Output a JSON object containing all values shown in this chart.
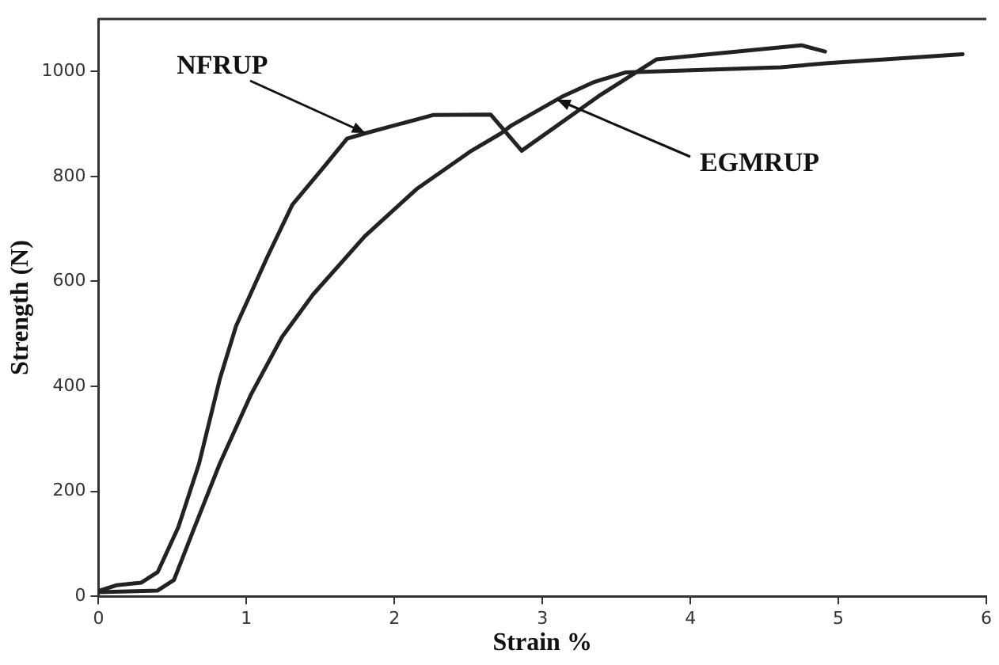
{
  "chart_data": {
    "type": "line",
    "xlabel": "Strain %",
    "ylabel": "Strength (N)",
    "xlim": [
      0,
      6
    ],
    "xticks": [
      0,
      1,
      2,
      3,
      4,
      5,
      6
    ],
    "ylim": [
      0,
      1100
    ],
    "yticks": [
      0,
      200,
      400,
      600,
      800,
      1000
    ],
    "grid": false,
    "legend": false,
    "marker": "none",
    "line_style": "solid",
    "series": [
      {
        "color": "#222222",
        "x": [
          0,
          0.12,
          0.29,
          0.4,
          0.54,
          0.68,
          0.82,
          0.93,
          1.14,
          1.31,
          1.52,
          1.68,
          1.8,
          2.26,
          2.65,
          2.86,
          3.38,
          3.77,
          4.75,
          4.91
        ],
        "values": [
          10,
          21,
          26,
          46,
          132,
          253,
          414,
          515,
          646,
          746,
          817,
          872,
          882,
          917,
          918,
          849,
          953,
          1023,
          1050,
          1038
        ]
      },
      {
        "color": "#222222",
        "x": [
          0,
          0.4,
          0.51,
          0.65,
          0.82,
          1.03,
          1.24,
          1.45,
          1.8,
          2.15,
          2.51,
          2.72,
          2.79,
          3.14,
          3.35,
          3.56,
          4.61,
          4.93,
          5.84
        ],
        "values": [
          8,
          11,
          31,
          132,
          253,
          384,
          494,
          575,
          686,
          776,
          847,
          882,
          897,
          953,
          980,
          998,
          1008,
          1016,
          1033
        ]
      }
    ],
    "annotations": [
      {
        "text": "NFRUP",
        "x": 1.8,
        "y": 882
      },
      {
        "text": "EGMRUP",
        "x": 3.1,
        "y": 945
      }
    ]
  }
}
